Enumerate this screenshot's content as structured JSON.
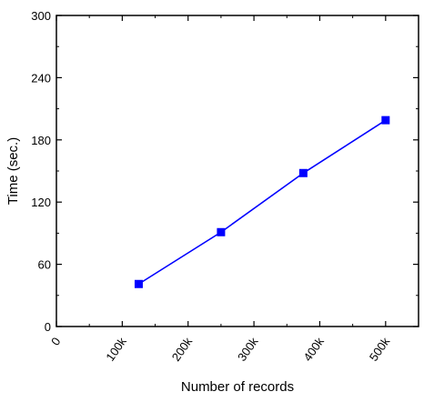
{
  "chart_data": {
    "type": "line",
    "title": "",
    "xlabel": "Number of records",
    "ylabel": "Time (sec.)",
    "x_tick_labels": [
      "0",
      "100k",
      "200k",
      "300k",
      "400k",
      "500k"
    ],
    "x_ticks": [
      0,
      100000,
      200000,
      300000,
      400000,
      500000
    ],
    "y_tick_labels": [
      "0",
      "60",
      "120",
      "180",
      "240",
      "300"
    ],
    "y_ticks": [
      0,
      60,
      120,
      180,
      240,
      300
    ],
    "xlim": [
      0,
      550000
    ],
    "ylim": [
      0,
      300
    ],
    "grid": false,
    "series": [
      {
        "name": "",
        "color": "#0000ff",
        "marker": "square",
        "x": [
          125000,
          250000,
          375000,
          500000
        ],
        "y": [
          41,
          91,
          148,
          199
        ]
      }
    ]
  }
}
